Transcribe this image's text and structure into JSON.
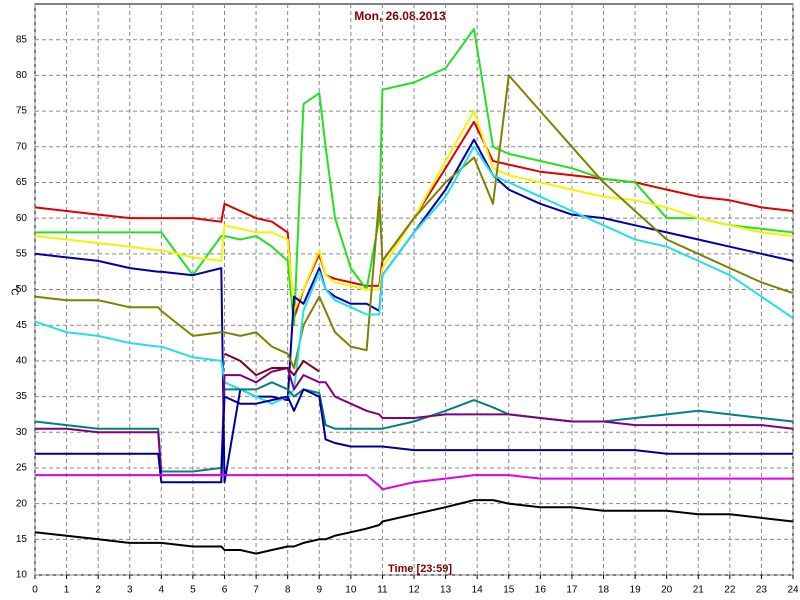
{
  "chart_data": {
    "type": "line",
    "title": "Mon, 26.08.2013",
    "y_label": "°C",
    "x_label": "Time [23:59]",
    "x": [
      0,
      1,
      2,
      3,
      3.9,
      4,
      5,
      5.9,
      6,
      6.5,
      7,
      7.5,
      8,
      8.2,
      8.5,
      9,
      9.2,
      9.5,
      10,
      10.5,
      10.9,
      11,
      12,
      13,
      13.9,
      14.5,
      15,
      16,
      17,
      18,
      19,
      20,
      21,
      22,
      23,
      24
    ],
    "xlim": [
      0,
      24
    ],
    "xticks": [
      0,
      1,
      2,
      3,
      4,
      5,
      6,
      7,
      8,
      9,
      10,
      11,
      12,
      13,
      14,
      15,
      16,
      17,
      18,
      19,
      20,
      21,
      22,
      23,
      24
    ],
    "ylim": [
      10,
      90
    ],
    "yticks": [
      10,
      15,
      20,
      25,
      30,
      35,
      40,
      45,
      50,
      55,
      60,
      65,
      70,
      75,
      80,
      85
    ],
    "grid": true,
    "series": [
      {
        "color": "#e00000",
        "values": [
          61.5,
          61,
          60.5,
          60,
          60,
          60,
          60,
          59.5,
          62,
          61,
          60,
          59.5,
          58,
          46,
          50,
          55,
          52,
          51.5,
          51,
          50.5,
          50.5,
          54,
          60,
          67,
          73.5,
          68,
          67.5,
          66.5,
          66,
          65.5,
          65,
          64,
          63,
          62.5,
          61.5,
          61
        ]
      },
      {
        "color": "#22e022",
        "values": [
          58,
          58,
          58,
          58,
          58,
          58,
          52,
          57.5,
          57.5,
          57,
          57.5,
          56,
          54,
          45,
          76,
          77.5,
          70,
          60,
          53,
          50,
          60,
          78,
          79,
          81,
          86.5,
          70,
          69,
          68,
          67,
          65.5,
          65,
          60,
          60,
          59,
          58.5,
          58
        ]
      },
      {
        "color": "#f4f400",
        "values": [
          57.5,
          57,
          56.5,
          56,
          55.5,
          55.5,
          54.5,
          54,
          59,
          58.5,
          58,
          58,
          57,
          47,
          50,
          55.5,
          52,
          51,
          50.5,
          50,
          50,
          53,
          60,
          68,
          75,
          67,
          66,
          65,
          64,
          63,
          62.5,
          61.5,
          60,
          59,
          58,
          57.5
        ]
      },
      {
        "color": "#0000a8",
        "values": [
          55,
          54.5,
          54,
          53,
          52.5,
          52.5,
          52,
          53,
          23,
          36,
          35,
          35,
          34.5,
          49,
          48,
          53,
          50,
          49,
          48,
          48,
          47,
          52,
          58,
          64,
          71,
          66,
          64,
          62,
          60.5,
          60,
          59,
          58,
          57,
          56,
          55,
          54
        ]
      },
      {
        "color": "#808000",
        "values": [
          49,
          48.5,
          48.5,
          47.5,
          47.5,
          47,
          43.5,
          44,
          44,
          43.5,
          44,
          42,
          41,
          39,
          45,
          49,
          47,
          44,
          42,
          41.5,
          63,
          54,
          60,
          65,
          68.5,
          62,
          80,
          75,
          70,
          65,
          61,
          57,
          55,
          53,
          51,
          49.5
        ]
      },
      {
        "color": "#22e0e8",
        "values": [
          45.5,
          44,
          43.5,
          42.5,
          42,
          42,
          40.5,
          40,
          37,
          36,
          35,
          34,
          35,
          36,
          47,
          52.5,
          50,
          48.5,
          47.5,
          46.5,
          46.5,
          52,
          58,
          63,
          70,
          66,
          65,
          63,
          61,
          59,
          57,
          56,
          54,
          52,
          49,
          46
        ]
      },
      {
        "color": "#008080",
        "values": [
          31.5,
          31,
          30.5,
          30.5,
          30.5,
          24.5,
          24.5,
          25,
          36,
          36,
          36,
          37,
          36,
          35,
          36,
          35.5,
          31,
          30.5,
          30.5,
          30.5,
          30.5,
          30.5,
          31.5,
          33,
          34.5,
          33.5,
          32.5,
          32,
          31.5,
          31.5,
          32,
          32.5,
          33,
          32.5,
          32,
          31.5
        ]
      },
      {
        "color": "#800080",
        "values": [
          30.5,
          30.5,
          30,
          30,
          30,
          24,
          24,
          24,
          38,
          38,
          37,
          38.5,
          39,
          36,
          38,
          37,
          37,
          35,
          34,
          33,
          32.5,
          32,
          32,
          32.5,
          32.5,
          32.5,
          32.5,
          32,
          31.5,
          31.5,
          31,
          31,
          31,
          31,
          31,
          30.5
        ]
      },
      {
        "color": "#000090",
        "values": [
          27,
          27,
          27,
          27,
          27,
          23,
          23,
          23,
          35,
          34,
          34,
          34.5,
          35,
          33,
          36,
          35,
          29,
          28.5,
          28,
          28,
          28,
          28,
          27.5,
          27.5,
          27.5,
          27.5,
          27.5,
          27.5,
          27.5,
          27.5,
          27.5,
          27,
          27,
          27,
          27,
          27
        ]
      },
      {
        "color": "#e000e0",
        "values": [
          24,
          24,
          24,
          24,
          24,
          24,
          24,
          24,
          24,
          24,
          24,
          24,
          24,
          24,
          24,
          24,
          24,
          24,
          24,
          24,
          22.5,
          22,
          23,
          23.5,
          24,
          24,
          24,
          23.5,
          23.5,
          23.5,
          23.5,
          23.5,
          23.5,
          23.5,
          23.5,
          23.5
        ]
      },
      {
        "color": "#000000",
        "values": [
          16,
          15.5,
          15,
          14.5,
          14.5,
          14.5,
          14,
          14,
          13.5,
          13.5,
          13,
          13.5,
          14,
          14,
          14.5,
          15,
          15,
          15.5,
          16,
          16.5,
          17,
          17.5,
          18.5,
          19.5,
          20.5,
          20.5,
          20,
          19.5,
          19.5,
          19,
          19,
          19,
          18.5,
          18.5,
          18,
          17.5
        ]
      },
      {
        "color": "#800020",
        "values": [
          null,
          null,
          null,
          null,
          null,
          null,
          null,
          null,
          41,
          40,
          38,
          39,
          39,
          38,
          40,
          38.5,
          null,
          null,
          null,
          null,
          null,
          null,
          null,
          null,
          null,
          null,
          null,
          null,
          null,
          null,
          null,
          null,
          null,
          null,
          null,
          null
        ]
      }
    ]
  }
}
